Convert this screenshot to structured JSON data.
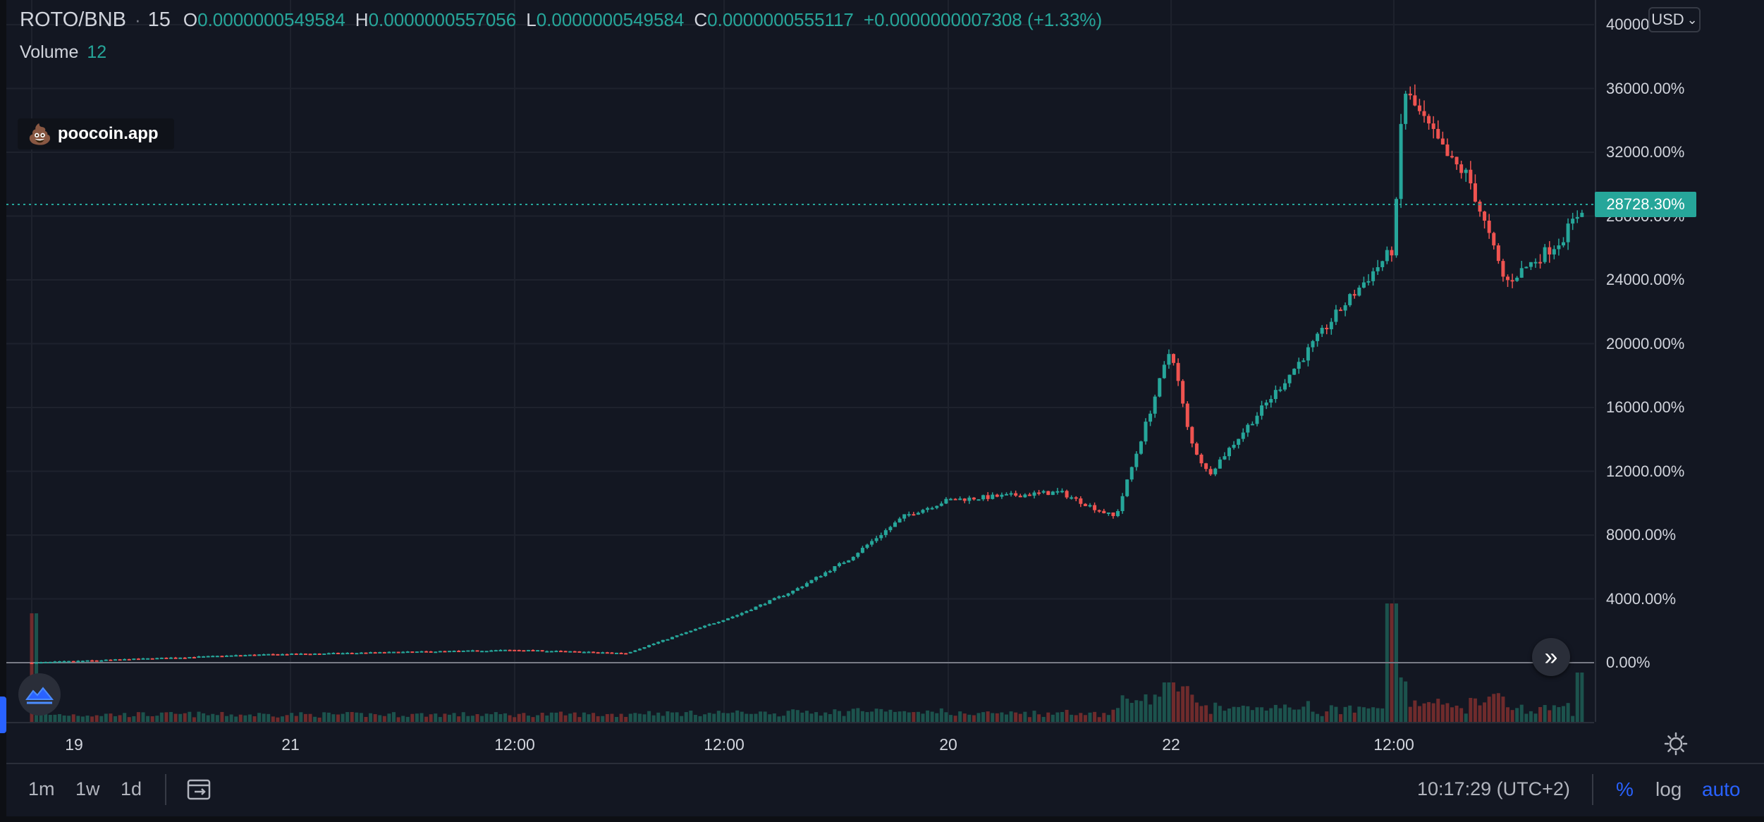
{
  "legend": {
    "symbol": "ROTO/BNB",
    "sep": "·",
    "interval": "15",
    "o_key": "O",
    "o_val": "0.0000000549584",
    "h_key": "H",
    "h_val": "0.0000000557056",
    "l_key": "L",
    "l_val": "0.0000000549584",
    "c_key": "C",
    "c_val": "0.0000000555117",
    "change": "+0.0000000007308 (+1.33%)"
  },
  "volume_legend": {
    "label": "Volume",
    "value": "12"
  },
  "watermark": {
    "icon": "poop-icon",
    "text": "poocoin.app"
  },
  "currency_select": {
    "value": "USD",
    "arrow": "⌄"
  },
  "last_price_label": "28728.30%",
  "goto_realtime": "»",
  "colors": {
    "up": "#26a69a",
    "down": "#ef5350",
    "background": "#131722",
    "grid": "#1e222d",
    "accent": "#2962ff"
  },
  "y_axis": {
    "labels": [
      "40000.00%",
      "36000.00%",
      "32000.00%",
      "28000.00%",
      "24000.00%",
      "20000.00%",
      "16000.00%",
      "12000.00%",
      "8000.00%",
      "4000.00%",
      "0.00%"
    ],
    "values": [
      40000,
      36000,
      32000,
      28000,
      24000,
      20000,
      16000,
      12000,
      8000,
      4000,
      0
    ]
  },
  "x_axis": {
    "labels": [
      "19",
      "12:00",
      "20",
      "12:00",
      "21",
      "12:00",
      "22"
    ]
  },
  "chart_data": {
    "type": "candlestick",
    "interval_minutes": 15,
    "y_scale": "percent",
    "ylim": [
      -3500,
      41000
    ],
    "last_value": 28728.3,
    "path_points": [
      [
        "19",
        0
      ],
      [
        "19 12:00",
        500
      ],
      [
        "20",
        800
      ],
      [
        "20 06:00",
        600
      ],
      [
        "20 12:00",
        3000
      ],
      [
        "20 15:00",
        4500
      ],
      [
        "20 18:00",
        6500
      ],
      [
        "20 21:00",
        9200
      ],
      [
        "21",
        10200
      ],
      [
        "21 06:00",
        10700
      ],
      [
        "21 09:00",
        9100
      ],
      [
        "21 12:00",
        19800
      ],
      [
        "21 13:00",
        14000
      ],
      [
        "21 14:00",
        11800
      ],
      [
        "21 18:00",
        17500
      ],
      [
        "21 21:00",
        22000
      ],
      [
        "22",
        26000
      ],
      [
        "22 00:30",
        36000
      ],
      [
        "22 03:00",
        31500
      ],
      [
        "22 04:00",
        30500
      ],
      [
        "22 06:00",
        23800
      ],
      [
        "22 09:00",
        26500
      ],
      [
        "22 10:15",
        28728.3
      ]
    ],
    "volume_peaks": [
      [
        "19",
        11
      ],
      [
        "21 12:00",
        4
      ],
      [
        "22",
        12
      ],
      [
        "22 10:15",
        5
      ]
    ]
  },
  "bottom_bar": {
    "timeframes": [
      "1m",
      "1w",
      "1d"
    ],
    "clock": "10:17:29 (UTC+2)",
    "scale_options": [
      "%",
      "log",
      "auto"
    ]
  }
}
